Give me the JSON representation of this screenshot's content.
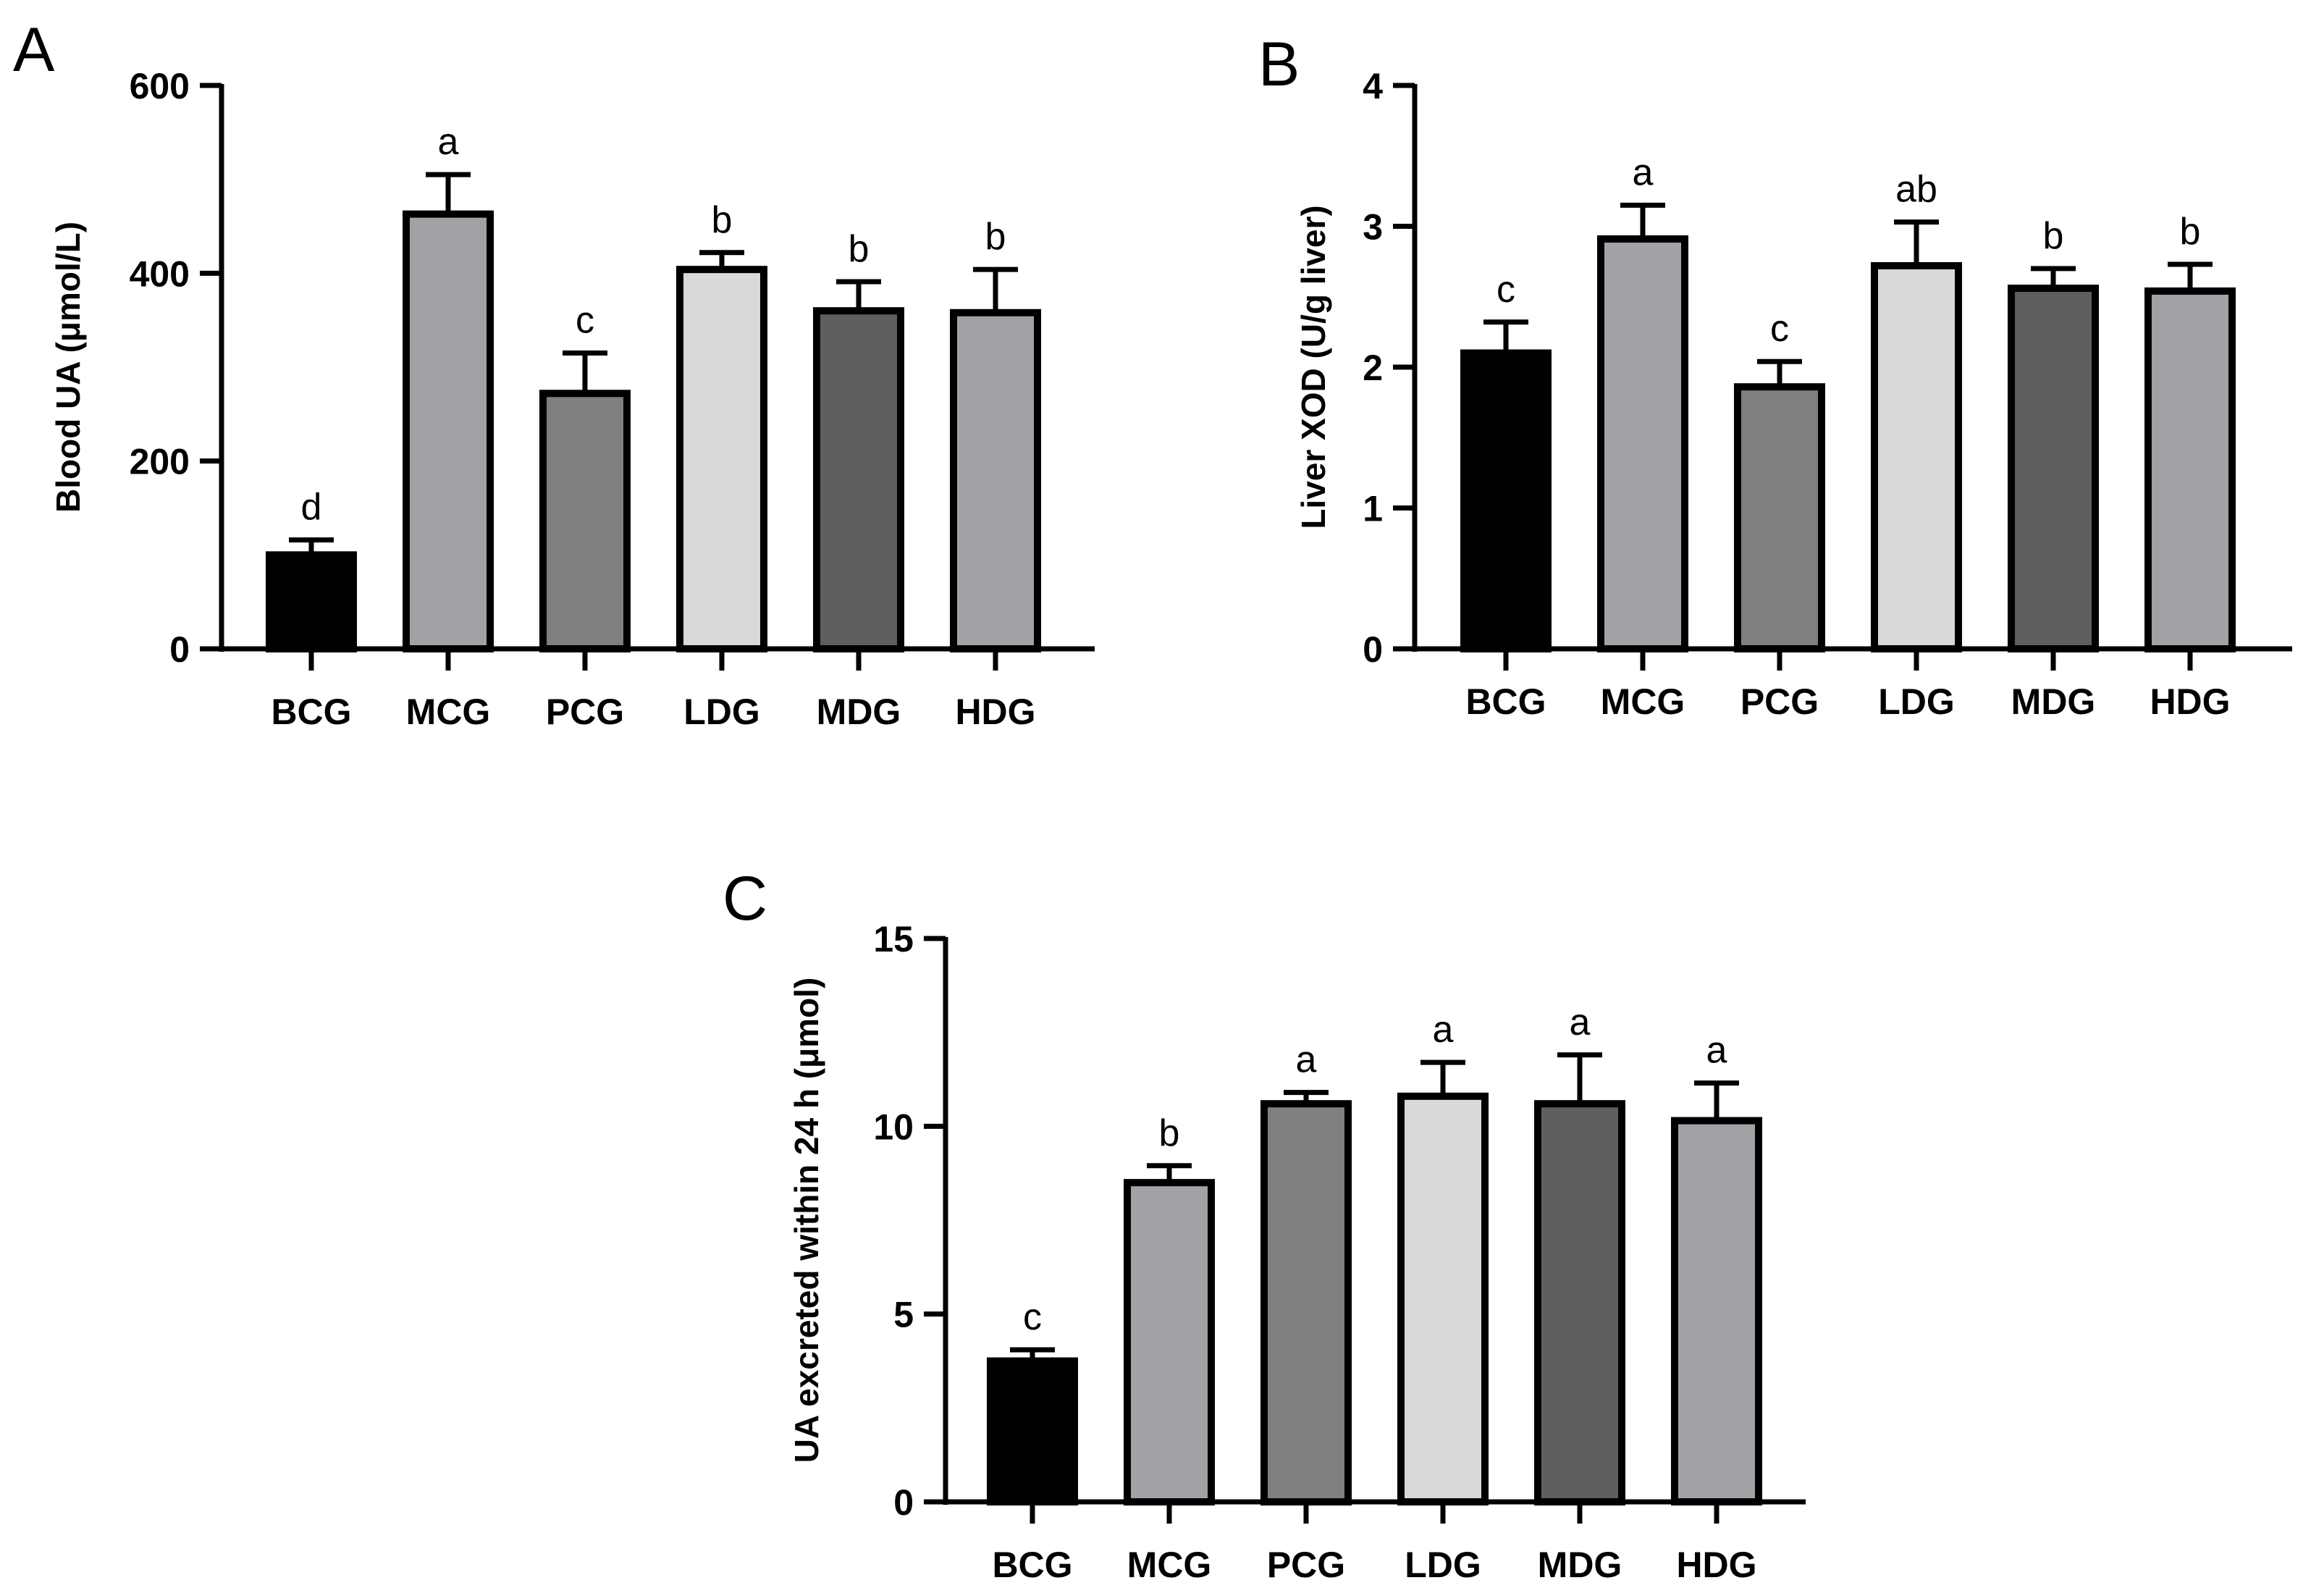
{
  "chart_data": [
    {
      "panel": "A",
      "type": "bar",
      "ylabel": "Blood UA (μmol/L)",
      "xlabel": "",
      "categories": [
        "BCG",
        "MCG",
        "PCG",
        "LDG",
        "MDG",
        "HDG"
      ],
      "values": [
        100,
        463,
        272,
        404,
        360,
        358
      ],
      "errors": [
        16,
        42,
        43,
        18,
        31,
        46
      ],
      "significance": [
        "d",
        "a",
        "c",
        "b",
        "b",
        "b"
      ],
      "ylim": [
        0,
        600
      ],
      "yticks": [
        0,
        200,
        400,
        600
      ]
    },
    {
      "panel": "B",
      "type": "bar",
      "ylabel": "Liver XOD (U/g liver)",
      "xlabel": "",
      "categories": [
        "BCG",
        "MCG",
        "PCG",
        "LDG",
        "MDG",
        "HDG"
      ],
      "values": [
        2.1,
        2.91,
        1.86,
        2.72,
        2.56,
        2.54
      ],
      "errors": [
        0.22,
        0.24,
        0.18,
        0.31,
        0.14,
        0.19
      ],
      "significance": [
        "c",
        "a",
        "c",
        "ab",
        "b",
        "b"
      ],
      "ylim": [
        0,
        4
      ],
      "yticks": [
        0,
        1,
        2,
        3,
        4
      ]
    },
    {
      "panel": "C",
      "type": "bar",
      "ylabel": "UA excreted within 24 h (μmol)",
      "xlabel": "",
      "categories": [
        "BCG",
        "MCG",
        "PCG",
        "LDG",
        "MDG",
        "HDG"
      ],
      "values": [
        3.75,
        8.5,
        10.6,
        10.8,
        10.6,
        10.15
      ],
      "errors": [
        0.3,
        0.45,
        0.3,
        0.9,
        1.3,
        1.0
      ],
      "significance": [
        "c",
        "b",
        "a",
        "a",
        "a",
        "a"
      ],
      "ylim": [
        0,
        15
      ],
      "yticks": [
        0,
        5,
        10,
        15
      ]
    }
  ],
  "bar_colors": [
    "#000000",
    "#a2a2a6",
    "#7f7f7f",
    "#d9d9d9",
    "#5f5f5f",
    "#a2a2a6"
  ]
}
